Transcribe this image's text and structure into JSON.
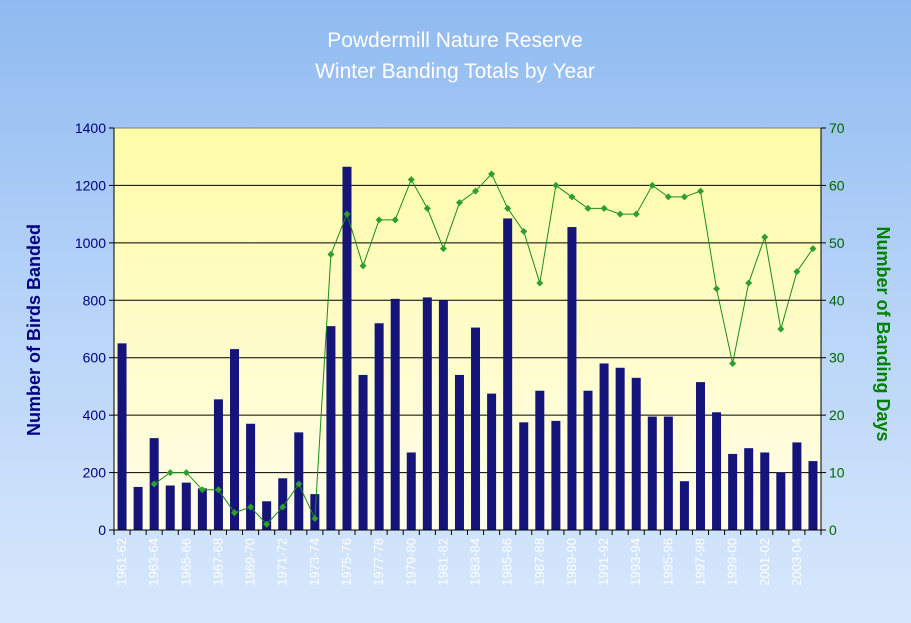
{
  "chart_data": {
    "type": "bar",
    "title": "Powdermill Nature Reserve",
    "subtitle": "Winter Banding Totals by Year",
    "ylabel": "Number of Birds Banded",
    "y2label": "Number of Banding Days",
    "ylim": [
      0,
      1400
    ],
    "yticks": [
      0,
      200,
      400,
      600,
      800,
      1000,
      1200,
      1400
    ],
    "y2lim": [
      0,
      70
    ],
    "y2ticks": [
      0,
      10,
      20,
      30,
      40,
      50,
      60,
      70
    ],
    "grid": true,
    "categories": [
      "1961-62",
      "1962-63",
      "1963-64",
      "1964-65",
      "1965-66",
      "1966-67",
      "1967-68",
      "1968-69",
      "1969-70",
      "1970-71",
      "1971-72",
      "1972-73",
      "1973-74",
      "1974-75",
      "1975-76",
      "1976-77",
      "1977-78",
      "1978-79",
      "1979-80",
      "1980-81",
      "1981-82",
      "1982-83",
      "1983-84",
      "1984-85",
      "1985-86",
      "1986-87",
      "1987-88",
      "1988-89",
      "1989-90",
      "1990-91",
      "1991-92",
      "1992-93",
      "1993-94",
      "1994-95",
      "1995-96",
      "1996-97",
      "1997-98",
      "1998-99",
      "1999-00",
      "2000-01",
      "2001-02",
      "2002-03",
      "2003-04",
      "2004-05"
    ],
    "tick_labels": [
      "1961-62",
      "1963-64",
      "1965-66",
      "1967-68",
      "1969-70",
      "1971-72",
      "1973-74",
      "1975-76",
      "1977-78",
      "1979-80",
      "1981-82",
      "1983-84",
      "1985-86",
      "1987-88",
      "1989-90",
      "1991-92",
      "1993-94",
      "1995-96",
      "1997-98",
      "1999-00",
      "2001-02",
      "2003-04"
    ],
    "series": [
      {
        "type": "bar",
        "axis": "left",
        "color": "#14147a",
        "values": [
          650,
          150,
          320,
          155,
          165,
          145,
          455,
          630,
          370,
          100,
          180,
          340,
          125,
          710,
          1265,
          540,
          720,
          805,
          270,
          810,
          800,
          540,
          705,
          475,
          1085,
          375,
          485,
          380,
          1055,
          485,
          580,
          565,
          530,
          395,
          395,
          170,
          515,
          410,
          265,
          285,
          270,
          200,
          305,
          240
        ]
      },
      {
        "type": "line",
        "axis": "right",
        "color": "#1a8c1a",
        "marker_color": "#2e9e2e",
        "values": [
          null,
          null,
          8,
          10,
          10,
          7,
          7,
          3,
          4,
          1,
          4,
          8,
          2,
          48,
          55,
          46,
          54,
          54,
          61,
          56,
          49,
          57,
          59,
          62,
          56,
          52,
          43,
          60,
          58,
          56,
          56,
          55,
          55,
          60,
          58,
          58,
          59,
          42,
          29,
          43,
          51,
          35,
          45,
          49
        ]
      }
    ]
  },
  "colors": {
    "plot_top": "#fffca8",
    "plot_bottom": "#fffde9",
    "left_axis_text": "#000080",
    "right_axis_text": "#008000",
    "title_text": "#ffffff"
  }
}
